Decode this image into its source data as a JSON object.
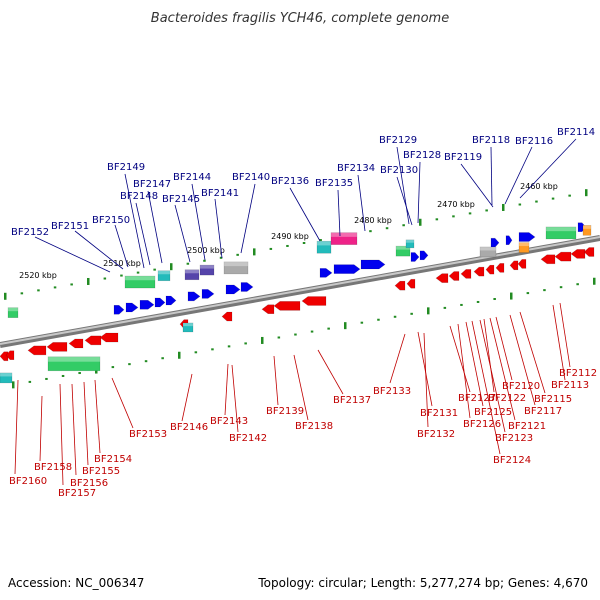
{
  "title": "Bacteroides fragilis YCH46, complete genome",
  "footer": {
    "accession": "Accession: NC_006347",
    "topology": "Topology: circular; Length: 5,277,274 bp; Genes: 4,670"
  },
  "kbp_labels": [
    "2520 kbp",
    "2510 kbp",
    "2500 kbp",
    "2490 kbp",
    "2480 kbp",
    "2470 kbp",
    "2460 kbp"
  ],
  "top_labels": [
    "BF2152",
    "BF2151",
    "BF2150",
    "BF2149",
    "BF2148",
    "BF2147",
    "BF2145",
    "BF2144",
    "BF2141",
    "BF2140",
    "BF2136",
    "BF2135",
    "BF2134",
    "BF2130",
    "BF2129",
    "BF2128",
    "BF2119",
    "BF2118",
    "BF2116",
    "BF2114"
  ],
  "bottom_labels": [
    "BF2160",
    "BF2158",
    "BF2157",
    "BF2156",
    "BF2155",
    "BF2154",
    "BF2153",
    "BF2146",
    "BF2143",
    "BF2142",
    "BF2139",
    "BF2138",
    "BF2137",
    "BF2133",
    "BF2131",
    "BF2132",
    "BF2127",
    "BF2126",
    "BF2125",
    "BF2124",
    "BF2123",
    "BF2122",
    "BF2121",
    "BF2120",
    "BF2117",
    "BF2115",
    "BF2113",
    "BF2112"
  ],
  "colors": {
    "forward_gene": "#0000ee",
    "reverse_gene": "#ee0000",
    "backbone": "#999999",
    "tick": "#228b22",
    "rna_green": "#33cc66",
    "rna_cyan": "#22bbbb",
    "rna_magenta": "#ee2288",
    "rna_purple": "#5544aa",
    "rna_gray": "#aaaaaa",
    "rna_orange": "#ff9922"
  }
}
